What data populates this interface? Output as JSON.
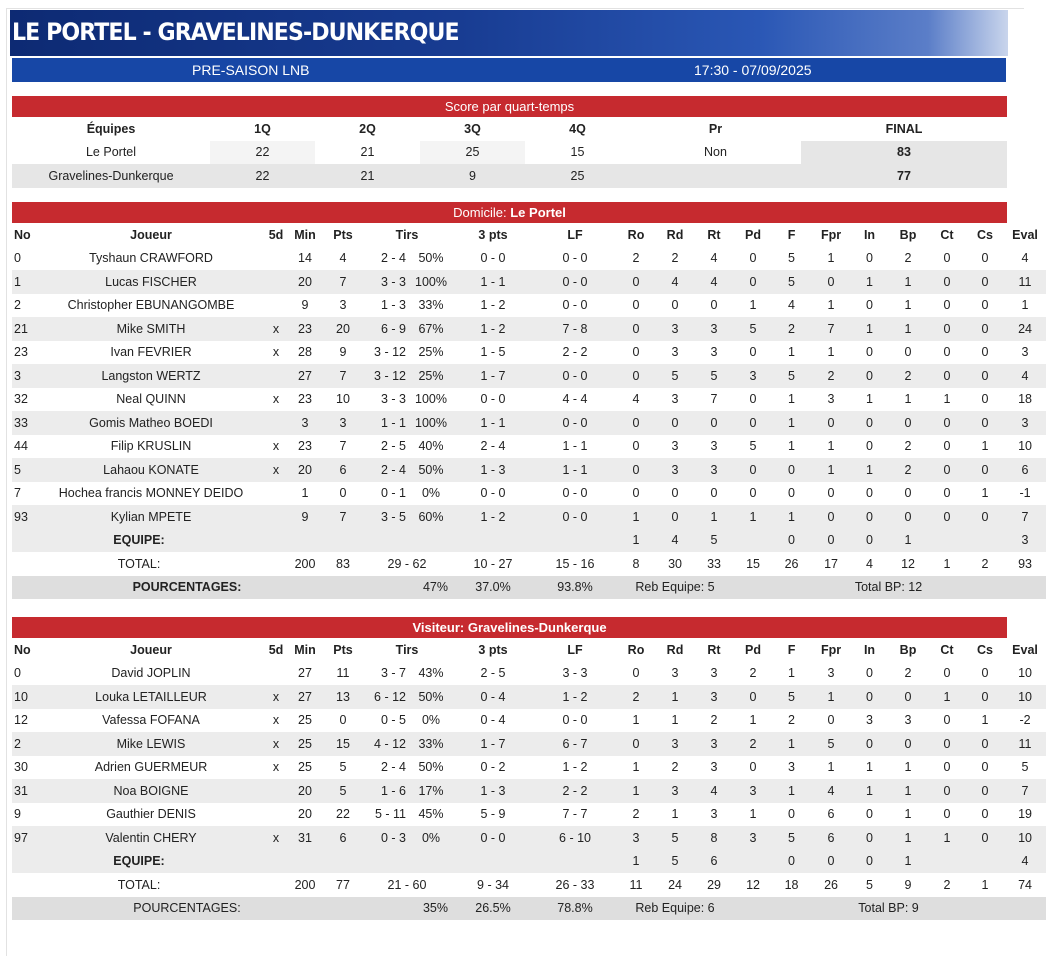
{
  "header": {
    "title": "LE PORTEL - GRAVELINES-DUNKERQUE",
    "competition": "PRE-SAISON LNB",
    "datetime": "17:30 - 07/09/2025"
  },
  "quarters": {
    "title": "Score par quart-temps",
    "headers": [
      "Équipes",
      "1Q",
      "2Q",
      "3Q",
      "4Q",
      "Pr",
      "FINAL"
    ],
    "rows": [
      [
        "Le Portel",
        "22",
        "21",
        "25",
        "15",
        "Non",
        "83"
      ],
      [
        "Gravelines-Dunkerque",
        "22",
        "21",
        "9",
        "25",
        "",
        "77"
      ]
    ]
  },
  "home": {
    "label": "Domicile:",
    "team": "Le Portel",
    "headers": [
      "No",
      "Joueur",
      "5d",
      "Min",
      "Pts",
      "Tirs",
      "",
      "3 pts",
      "LF",
      "Ro",
      "Rd",
      "Rt",
      "Pd",
      "F",
      "Fpr",
      "In",
      "Bp",
      "Ct",
      "Cs",
      "Eval"
    ],
    "players": [
      [
        "0",
        "Tyshaun CRAWFORD",
        "",
        "14",
        "4",
        "2 - 4",
        "50%",
        "0 - 0",
        "0 - 0",
        "2",
        "2",
        "4",
        "0",
        "5",
        "1",
        "0",
        "2",
        "0",
        "0",
        "4"
      ],
      [
        "1",
        "Lucas FISCHER",
        "",
        "20",
        "7",
        "3 - 3",
        "100%",
        "1 - 1",
        "0 - 0",
        "0",
        "4",
        "4",
        "0",
        "5",
        "0",
        "1",
        "1",
        "0",
        "0",
        "11"
      ],
      [
        "2",
        "Christopher EBUNANGOMBE",
        "",
        "9",
        "3",
        "1 - 3",
        "33%",
        "1 - 2",
        "0 - 0",
        "0",
        "0",
        "0",
        "1",
        "4",
        "1",
        "0",
        "1",
        "0",
        "0",
        "1"
      ],
      [
        "21",
        "Mike SMITH",
        "x",
        "23",
        "20",
        "6 - 9",
        "67%",
        "1 - 2",
        "7 - 8",
        "0",
        "3",
        "3",
        "5",
        "2",
        "7",
        "1",
        "1",
        "0",
        "0",
        "24"
      ],
      [
        "23",
        "Ivan FEVRIER",
        "x",
        "28",
        "9",
        "3 - 12",
        "25%",
        "1 - 5",
        "2 - 2",
        "0",
        "3",
        "3",
        "0",
        "1",
        "1",
        "0",
        "0",
        "0",
        "0",
        "3"
      ],
      [
        "3",
        "Langston WERTZ",
        "",
        "27",
        "7",
        "3 - 12",
        "25%",
        "1 - 7",
        "0 - 0",
        "0",
        "5",
        "5",
        "3",
        "5",
        "2",
        "0",
        "2",
        "0",
        "0",
        "4"
      ],
      [
        "32",
        "Neal QUINN",
        "x",
        "23",
        "10",
        "3 - 3",
        "100%",
        "0 - 0",
        "4 - 4",
        "4",
        "3",
        "7",
        "0",
        "1",
        "3",
        "1",
        "1",
        "1",
        "0",
        "18"
      ],
      [
        "33",
        "Gomis Matheo BOEDI",
        "",
        "3",
        "3",
        "1 - 1",
        "100%",
        "1 - 1",
        "0 - 0",
        "0",
        "0",
        "0",
        "0",
        "1",
        "0",
        "0",
        "0",
        "0",
        "0",
        "3"
      ],
      [
        "44",
        "Filip KRUSLIN",
        "x",
        "23",
        "7",
        "2 - 5",
        "40%",
        "2 - 4",
        "1 - 1",
        "0",
        "3",
        "3",
        "5",
        "1",
        "1",
        "0",
        "2",
        "0",
        "1",
        "10"
      ],
      [
        "5",
        "Lahaou KONATE",
        "x",
        "20",
        "6",
        "2 - 4",
        "50%",
        "1 - 3",
        "1 - 1",
        "0",
        "3",
        "3",
        "0",
        "0",
        "1",
        "1",
        "2",
        "0",
        "0",
        "6"
      ],
      [
        "7",
        "Hochea francis MONNEY DEIDO",
        "",
        "1",
        "0",
        "0 - 1",
        "0%",
        "0 - 0",
        "0 - 0",
        "0",
        "0",
        "0",
        "0",
        "0",
        "0",
        "0",
        "0",
        "0",
        "1",
        "-1"
      ],
      [
        "93",
        "Kylian MPETE",
        "",
        "9",
        "7",
        "3 - 5",
        "60%",
        "1 - 2",
        "0 - 0",
        "1",
        "0",
        "1",
        "1",
        "1",
        "0",
        "0",
        "0",
        "0",
        "0",
        "7"
      ]
    ],
    "equipe": [
      "EQUIPE:",
      "1",
      "4",
      "5",
      "",
      "0",
      "0",
      "0",
      "1",
      "",
      "",
      "3"
    ],
    "total": [
      "TOTAL:",
      "200",
      "83",
      "29 - 62",
      "10 - 27",
      "15 - 16",
      "8",
      "30",
      "33",
      "15",
      "26",
      "17",
      "4",
      "12",
      "1",
      "2",
      "93"
    ],
    "pct": {
      "label": "POURCENTAGES:",
      "tirs": "47%",
      "three": "37.0%",
      "lf": "93.8%",
      "reb": "Reb Equipe: 5",
      "bp": "Total BP: 12"
    }
  },
  "away": {
    "label": "Visiteur:",
    "team": "Gravelines-Dunkerque",
    "headers": [
      "No",
      "Joueur",
      "5d",
      "Min",
      "Pts",
      "Tirs",
      "",
      "3 pts",
      "LF",
      "Ro",
      "Rd",
      "Rt",
      "Pd",
      "F",
      "Fpr",
      "In",
      "Bp",
      "Ct",
      "Cs",
      "Eval"
    ],
    "players": [
      [
        "0",
        "David JOPLIN",
        "",
        "27",
        "11",
        "3 - 7",
        "43%",
        "2 - 5",
        "3 - 3",
        "0",
        "3",
        "3",
        "2",
        "1",
        "3",
        "0",
        "2",
        "0",
        "0",
        "10"
      ],
      [
        "10",
        "Louka LETAILLEUR",
        "x",
        "27",
        "13",
        "6 - 12",
        "50%",
        "0 - 4",
        "1 - 2",
        "2",
        "1",
        "3",
        "0",
        "5",
        "1",
        "0",
        "0",
        "1",
        "0",
        "10"
      ],
      [
        "12",
        "Vafessa FOFANA",
        "x",
        "25",
        "0",
        "0 - 5",
        "0%",
        "0 - 4",
        "0 - 0",
        "1",
        "1",
        "2",
        "1",
        "2",
        "0",
        "3",
        "3",
        "0",
        "1",
        "-2"
      ],
      [
        "2",
        "Mike LEWIS",
        "x",
        "25",
        "15",
        "4 - 12",
        "33%",
        "1 - 7",
        "6 - 7",
        "0",
        "3",
        "3",
        "2",
        "1",
        "5",
        "0",
        "0",
        "0",
        "0",
        "11"
      ],
      [
        "30",
        "Adrien GUERMEUR",
        "x",
        "25",
        "5",
        "2 - 4",
        "50%",
        "0 - 2",
        "1 - 2",
        "1",
        "2",
        "3",
        "0",
        "3",
        "1",
        "1",
        "1",
        "0",
        "0",
        "5"
      ],
      [
        "31",
        "Noa BOIGNE",
        "",
        "20",
        "5",
        "1 - 6",
        "17%",
        "1 - 3",
        "2 - 2",
        "1",
        "3",
        "4",
        "3",
        "1",
        "4",
        "1",
        "1",
        "0",
        "0",
        "7"
      ],
      [
        "9",
        "Gauthier DENIS",
        "",
        "20",
        "22",
        "5 - 11",
        "45%",
        "5 - 9",
        "7 - 7",
        "2",
        "1",
        "3",
        "1",
        "0",
        "6",
        "0",
        "1",
        "0",
        "0",
        "19"
      ],
      [
        "97",
        "Valentin CHERY",
        "x",
        "31",
        "6",
        "0 - 3",
        "0%",
        "0 - 0",
        "6 - 10",
        "3",
        "5",
        "8",
        "3",
        "5",
        "6",
        "0",
        "1",
        "1",
        "0",
        "10"
      ]
    ],
    "equipe": [
      "EQUIPE:",
      "1",
      "5",
      "6",
      "",
      "0",
      "0",
      "0",
      "1",
      "",
      "",
      "4"
    ],
    "total": [
      "TOTAL:",
      "200",
      "77",
      "21 - 60",
      "9 - 34",
      "26 - 33",
      "11",
      "24",
      "29",
      "12",
      "18",
      "26",
      "5",
      "9",
      "2",
      "1",
      "74"
    ],
    "pct": {
      "label": "POURCENTAGES:",
      "tirs": "35%",
      "three": "26.5%",
      "lf": "78.8%",
      "reb": "Reb Equipe: 6",
      "bp": "Total BP: 9"
    }
  }
}
